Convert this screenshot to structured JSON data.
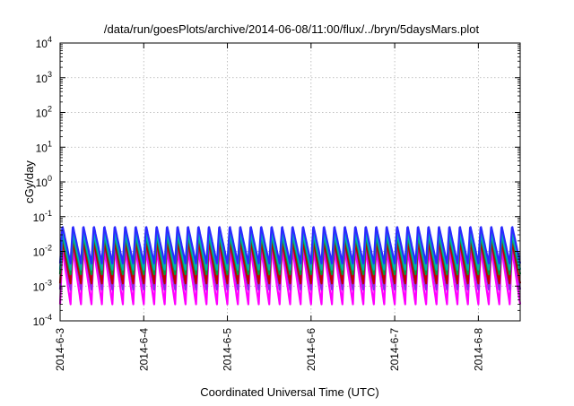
{
  "chart_data": {
    "type": "line",
    "title": "/data/run/goesPlots/archive/2014-06-08/11:00/flux/../bryn/5daysMars.plot",
    "xlabel": "Coordinated Universal Time (UTC)",
    "ylabel": "cGy/day",
    "yscale": "log",
    "ylim": [
      0.0001,
      10000
    ],
    "xlim": [
      "2014-06-03 00:00",
      "2014-06-08 12:00"
    ],
    "grid": true,
    "legend": "none",
    "y_ticks": [
      {
        "value": 0.0001,
        "base": "10",
        "exp": "-4"
      },
      {
        "value": 0.001,
        "base": "10",
        "exp": "-3"
      },
      {
        "value": 0.01,
        "base": "10",
        "exp": "-2"
      },
      {
        "value": 0.1,
        "base": "10",
        "exp": "-1"
      },
      {
        "value": 1,
        "base": "10",
        "exp": "0"
      },
      {
        "value": 10,
        "base": "10",
        "exp": "1"
      },
      {
        "value": 100,
        "base": "10",
        "exp": "2"
      },
      {
        "value": 1000,
        "base": "10",
        "exp": "3"
      },
      {
        "value": 10000,
        "base": "10",
        "exp": "4"
      }
    ],
    "x_ticks": [
      "2014-6-3",
      "2014-6-4",
      "2014-6-5",
      "2014-6-6",
      "2014-6-7",
      "2014-6-8"
    ],
    "oscillation": {
      "cycles_per_day": 8,
      "start": "2014-06-03 00:00",
      "end": "2014-06-08 12:00"
    },
    "series": [
      {
        "color": "#2a2aff",
        "peak": 0.055,
        "trough": 0.0045
      },
      {
        "color": "#00b0b0",
        "peak": 0.035,
        "trough": 0.003
      },
      {
        "color": "#00a040",
        "peak": 0.03,
        "trough": 0.0022
      },
      {
        "color": "#c00000",
        "peak": 0.02,
        "trough": 0.0012
      },
      {
        "color": "#8a2be2",
        "peak": 0.018,
        "trough": 0.0008
      },
      {
        "color": "#ff00ff",
        "peak": 0.012,
        "trough": 0.0003
      }
    ]
  }
}
